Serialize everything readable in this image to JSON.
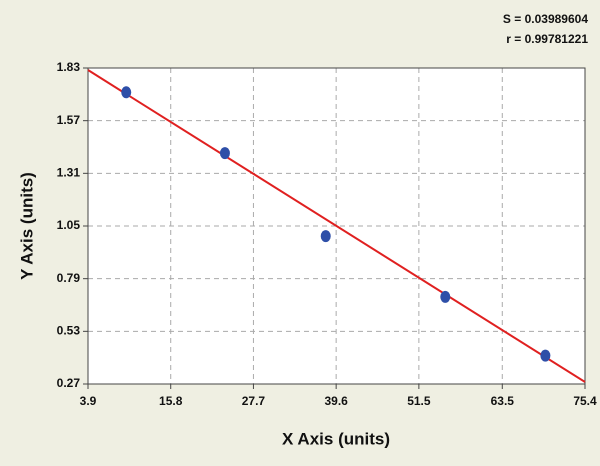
{
  "chart_data": {
    "type": "scatter",
    "annotations": [
      "S = 0.03989604",
      "r = 0.99781221"
    ],
    "x_label": "X Axis (units)",
    "y_label": "Y Axis (units)",
    "series": [
      {
        "color": "#2e4fa8",
        "x": [
          9.4,
          23.6,
          38.1,
          55.3,
          69.7
        ],
        "values": [
          1.71,
          1.41,
          1.0,
          0.7,
          0.41
        ]
      }
    ],
    "fit_line": {
      "color": "#e02020",
      "x": [
        3.9,
        75.4
      ],
      "y": [
        1.82,
        0.28
      ]
    },
    "xlim": [
      3.9,
      75.4
    ],
    "xticks": [
      3.9,
      15.8,
      27.7,
      39.6,
      51.5,
      63.5,
      75.4
    ],
    "ylim": [
      0.27,
      1.83
    ],
    "yticks": [
      0.27,
      0.53,
      0.79,
      1.05,
      1.31,
      1.57,
      1.83
    ],
    "grid": true
  }
}
